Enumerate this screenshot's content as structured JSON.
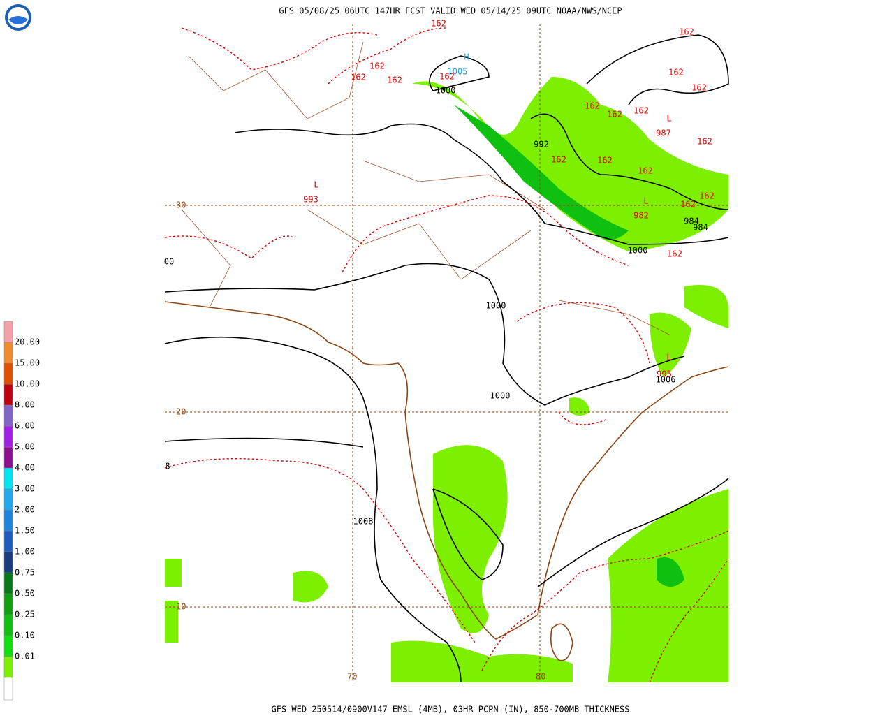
{
  "header": {
    "title": "GFS 05/08/25 06UTC 147HR FCST VALID WED 05/14/25 09UTC NOAA/NWS/NCEP"
  },
  "footer": {
    "text": "GFS WED 250514/0900V147 EMSL (4MB), 03HR PCPN (IN), 850-700MB THICKNESS"
  },
  "legend": {
    "items": [
      {
        "label": "0.01",
        "color": "#7cf000"
      },
      {
        "label": "0.10",
        "color": "#10e010"
      },
      {
        "label": "0.25",
        "color": "#10c010"
      },
      {
        "label": "0.50",
        "color": "#10a010"
      },
      {
        "label": "0.75",
        "color": "#087818"
      },
      {
        "label": "1.00",
        "color": "#183c7c"
      },
      {
        "label": "1.50",
        "color": "#1c5cc0"
      },
      {
        "label": "2.00",
        "color": "#1c84dc"
      },
      {
        "label": "3.00",
        "color": "#20a8e8"
      },
      {
        "label": "4.00",
        "color": "#00e4f4"
      },
      {
        "label": "5.00",
        "color": "#8c1090"
      },
      {
        "label": "6.00",
        "color": "#a020e8"
      },
      {
        "label": "8.00",
        "color": "#8064c8"
      },
      {
        "label": "10.00",
        "color": "#c00010"
      },
      {
        "label": "15.00",
        "color": "#e05000"
      },
      {
        "label": "20.00",
        "color": "#f08c2c"
      }
    ],
    "top_color": "#f4a0a8",
    "bottom_color": "#ffffff"
  },
  "map": {
    "lat_labels": [
      "30",
      "20",
      "10"
    ],
    "lon_labels": [
      "70",
      "80"
    ],
    "pressure_labels": [
      "1000",
      "992",
      "984",
      "984",
      "1000",
      "1000",
      "1000",
      "1006",
      "1008",
      "00",
      "8"
    ],
    "highs": [
      {
        "symbol": "H",
        "value": "1005"
      }
    ],
    "lows": [
      {
        "symbol": "L",
        "value": "993"
      },
      {
        "symbol": "L",
        "value": "987"
      },
      {
        "symbol": "L",
        "value": "982"
      },
      {
        "symbol": "L",
        "value": "995"
      }
    ],
    "thickness_labels": [
      "162",
      "162",
      "162",
      "162",
      "162",
      "162",
      "162",
      "162",
      "162",
      "162",
      "162",
      "162",
      "162",
      "162",
      "162",
      "162",
      "162",
      "162"
    ]
  }
}
